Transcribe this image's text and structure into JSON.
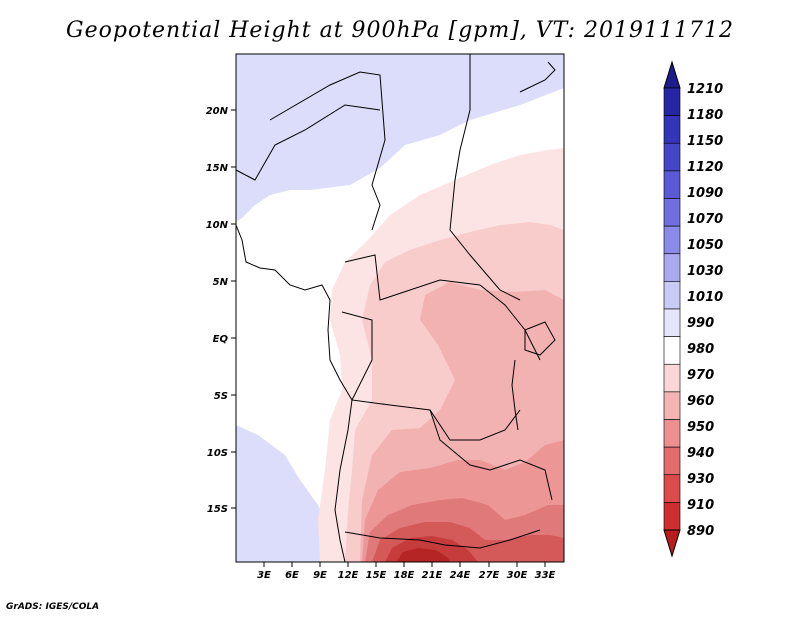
{
  "title": "Geopotential Height at 900hPa [gpm], VT: 2019111712",
  "credit": "GrADS: IGES/COLA",
  "map": {
    "lat_labels": [
      "20N",
      "15N",
      "10N",
      "5N",
      "EQ",
      "5S",
      "10S",
      "15S"
    ],
    "lon_labels": [
      "3E",
      "6E",
      "9E",
      "12E",
      "15E",
      "18E",
      "21E",
      "24E",
      "27E",
      "30E",
      "33E"
    ]
  },
  "colorbar": {
    "levels": [
      "1210",
      "1180",
      "1150",
      "1120",
      "1090",
      "1070",
      "1050",
      "1030",
      "1010",
      "990",
      "980",
      "970",
      "960",
      "950",
      "940",
      "930",
      "910",
      "890"
    ],
    "colors": [
      "#1c1c8c",
      "#2525a6",
      "#3434b8",
      "#4646c8",
      "#5a5ad6",
      "#6f6fe0",
      "#8a8ae8",
      "#a9a9ef",
      "#cacaf6",
      "#e4e4fb",
      "#ffffff",
      "#fbd6d6",
      "#f5b3b3",
      "#ee9090",
      "#e56c6c",
      "#dc4a4a",
      "#cf2e2e",
      "#b81c1c"
    ]
  }
}
